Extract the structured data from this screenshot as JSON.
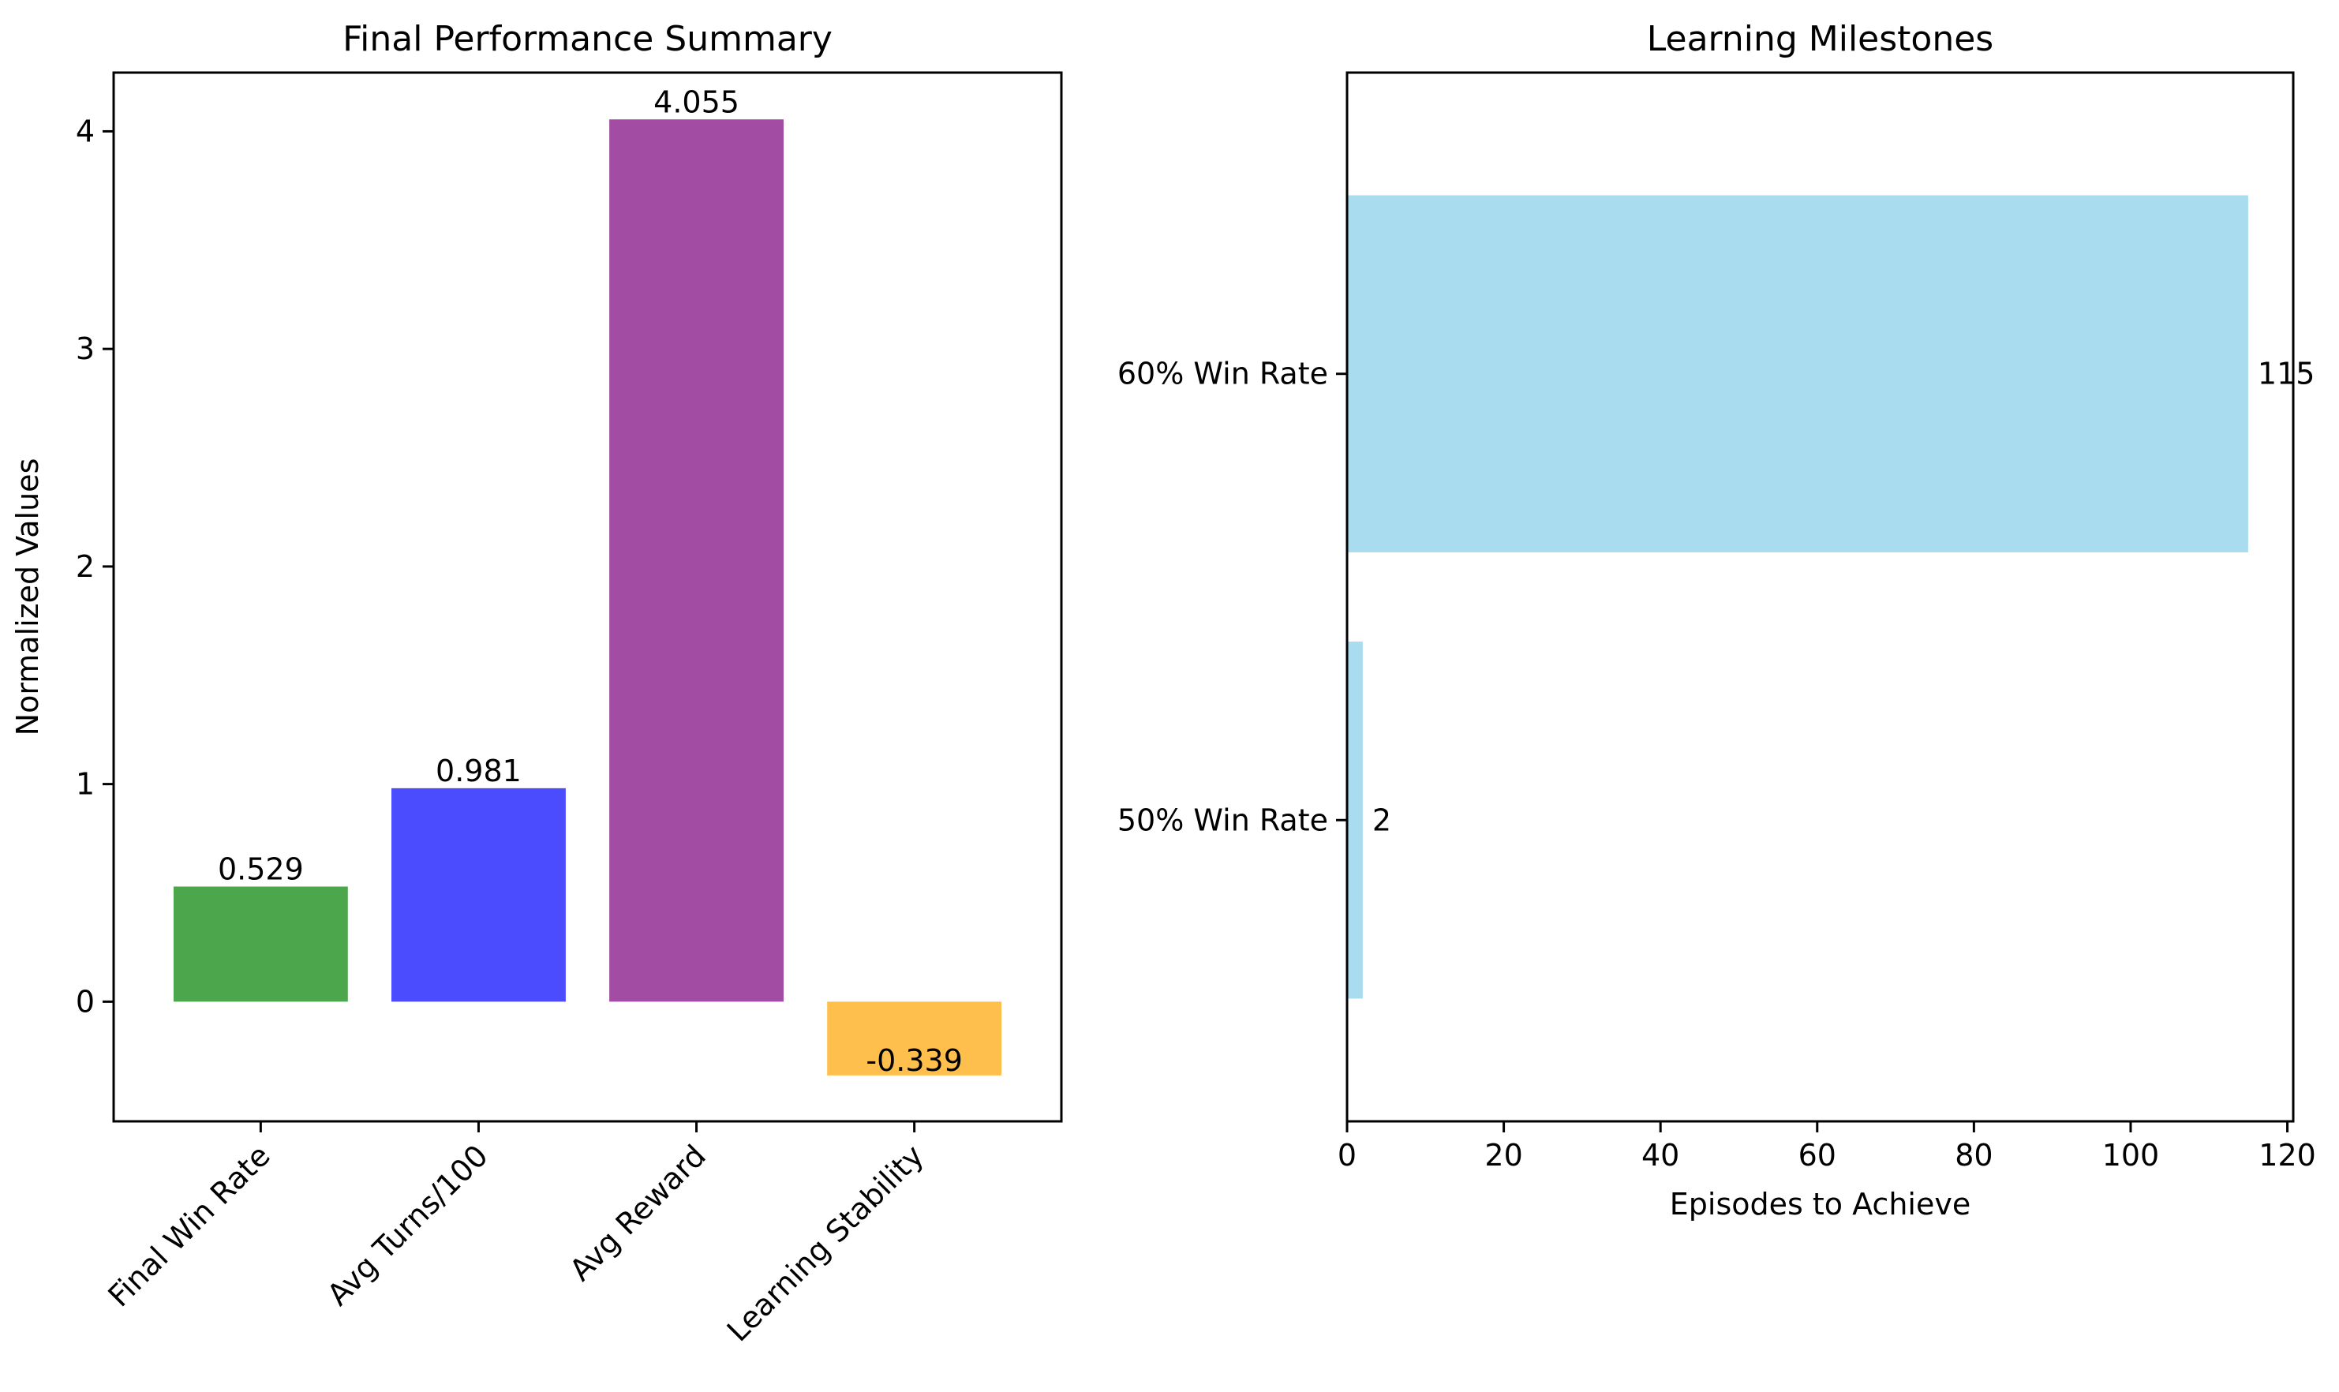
{
  "chart_data": [
    {
      "type": "bar",
      "title": "Final Performance Summary",
      "xlabel": "",
      "ylabel": "Normalized Values",
      "categories": [
        "Final Win Rate",
        "Avg Turns/100",
        "Avg Reward",
        "Learning Stability"
      ],
      "values": [
        0.529,
        0.981,
        4.055,
        -0.339
      ],
      "value_labels": [
        "0.529",
        "0.981",
        "4.055",
        "-0.339"
      ],
      "colors": [
        "#4ca64c",
        "#4c4cff",
        "#a34ca3",
        "#ffbf4c"
      ],
      "ylim": [
        -0.55,
        4.27
      ],
      "yticks": [
        0,
        1,
        2,
        3,
        4
      ],
      "ytick_labels": [
        "0",
        "1",
        "2",
        "3",
        "4"
      ],
      "xtick_rotation": 45,
      "grid": false
    },
    {
      "type": "bar",
      "orientation": "horizontal",
      "title": "Learning Milestones",
      "xlabel": "Episodes to Achieve",
      "ylabel": "",
      "categories": [
        "50% Win Rate",
        "60% Win Rate"
      ],
      "values": [
        2,
        115
      ],
      "value_labels": [
        "2",
        "115"
      ],
      "color": "#a8dcee",
      "xlim": [
        0,
        120.75
      ],
      "xticks": [
        0,
        20,
        40,
        60,
        80,
        100,
        120
      ],
      "xtick_labels": [
        "0",
        "20",
        "40",
        "60",
        "80",
        "100",
        "120"
      ],
      "grid": false
    }
  ]
}
